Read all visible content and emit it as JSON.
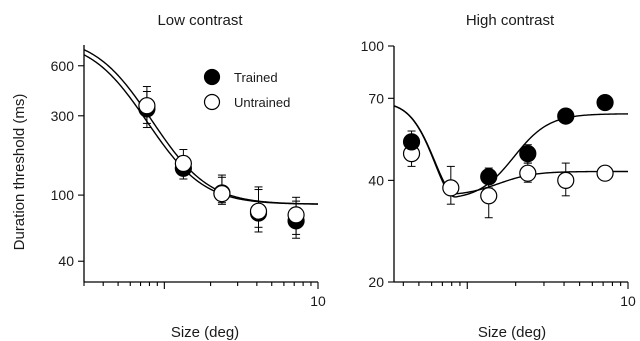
{
  "figure": {
    "ylabel": "Duration threshold (ms)",
    "legend": {
      "trained_label": "Trained",
      "untrained_label": "Untrained"
    }
  },
  "chart_data": [
    {
      "type": "scatter",
      "title": "Low contrast",
      "xlabel": "Size (deg)",
      "ylabel": "Duration threshold (ms)",
      "x_scale": "log",
      "y_scale": "log",
      "xlim": [
        0.3,
        10
      ],
      "ylim": [
        30,
        800
      ],
      "x_ticks": [
        {
          "value": 10,
          "label": "10"
        }
      ],
      "y_ticks": [
        {
          "value": 40,
          "label": "40"
        },
        {
          "value": 100,
          "label": "100"
        },
        {
          "value": 300,
          "label": "300"
        },
        {
          "value": 600,
          "label": "600"
        }
      ],
      "legend_position": "top-right",
      "series": [
        {
          "name": "Trained",
          "marker": "filled",
          "x": [
            0.77,
            1.33,
            2.37,
            4.1,
            7.2
          ],
          "y": [
            330,
            145,
            103,
            78,
            70
          ],
          "err_low": [
            255,
            125,
            90,
            60,
            55
          ],
          "err_high": [
            420,
            172,
            128,
            108,
            92
          ]
        },
        {
          "name": "Untrained",
          "marker": "open",
          "x": [
            0.77,
            1.33,
            2.37,
            4.1,
            7.2
          ],
          "y": [
            345,
            155,
            102,
            80,
            76
          ],
          "err_low": [
            270,
            132,
            88,
            64,
            58
          ],
          "err_high": [
            450,
            188,
            132,
            112,
            97
          ]
        }
      ],
      "fits": [
        {
          "name": "Trained",
          "floor": 88,
          "top": 860,
          "x50": 0.5,
          "n": 2.6
        },
        {
          "name": "Untrained",
          "floor": 88,
          "top": 900,
          "x50": 0.53,
          "n": 2.6
        }
      ]
    },
    {
      "type": "scatter",
      "title": "High contrast",
      "xlabel": "Size (deg)",
      "ylabel": "Duration threshold (ms)",
      "x_scale": "log",
      "y_scale": "log",
      "xlim": [
        0.35,
        10
      ],
      "ylim": [
        20,
        100
      ],
      "x_ticks": [
        {
          "value": 10,
          "label": "10"
        }
      ],
      "y_ticks": [
        {
          "value": 20,
          "label": "20"
        },
        {
          "value": 40,
          "label": "40"
        },
        {
          "value": 70,
          "label": "70"
        },
        {
          "value": 100,
          "label": "100"
        }
      ],
      "series": [
        {
          "name": "Trained",
          "marker": "filled",
          "x": [
            0.45,
            1.36,
            2.38,
            4.1,
            7.2
          ],
          "y": [
            52,
            41,
            48,
            62,
            68
          ],
          "err_low": [
            48,
            38,
            45,
            60,
            66
          ],
          "err_high": [
            56,
            43.5,
            51,
            64,
            71
          ]
        },
        {
          "name": "Untrained",
          "marker": "open",
          "x": [
            0.45,
            0.79,
            1.36,
            2.38,
            4.1,
            7.2
          ],
          "y": [
            48,
            38,
            36,
            42,
            40,
            42
          ],
          "err_low": [
            44,
            34,
            31,
            39.5,
            36,
            40
          ],
          "err_high": [
            52,
            44,
            40,
            45,
            45,
            44
          ]
        }
      ],
      "fits": [
        {
          "name": "Trained",
          "plateau": 63,
          "start": 68,
          "min": 35,
          "x_min": 0.85,
          "x_rise": 2.1
        },
        {
          "name": "Untrained",
          "plateau": 42.5,
          "start": 68,
          "min": 36,
          "x_min": 0.85,
          "x_rise": 1.6
        }
      ]
    }
  ]
}
